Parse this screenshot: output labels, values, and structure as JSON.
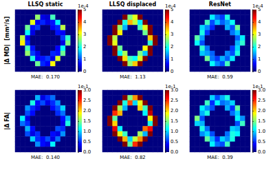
{
  "chart_data": [
    {
      "type": "heatmap",
      "title": "LLSQ static",
      "ylabel": "|Δ MD|  [mm²/s]",
      "annotation": "MAE:  0.170",
      "tick_labels": false,
      "colorbar": {
        "range": [
          0,
          5
        ],
        "ticks": [
          0,
          1,
          2,
          3,
          4,
          5
        ],
        "label": "1e-4"
      },
      "cells": [
        [
          0,
          0,
          0,
          0,
          0,
          0,
          0,
          0,
          0,
          0,
          0,
          0
        ],
        [
          0,
          0,
          0,
          0,
          2.6,
          0.5,
          0.4,
          2.2,
          0,
          0,
          0,
          0
        ],
        [
          0,
          0,
          0,
          3.0,
          0.6,
          0.8,
          0.5,
          0.7,
          1.8,
          0,
          0,
          0
        ],
        [
          0,
          0,
          2.4,
          0.7,
          0.9,
          0,
          0,
          0.6,
          0.8,
          2.8,
          0,
          0
        ],
        [
          0,
          0,
          1.9,
          0.5,
          0,
          0,
          0,
          0,
          0.7,
          0.6,
          0,
          0
        ],
        [
          0,
          2.8,
          0.6,
          0,
          0,
          0,
          0,
          0,
          0,
          0.9,
          2.1,
          0
        ],
        [
          0,
          3.2,
          0.8,
          0,
          0,
          0,
          0,
          0,
          0,
          0.5,
          2.5,
          0
        ],
        [
          0,
          0,
          2.2,
          0.7,
          0,
          0,
          0,
          0,
          0.6,
          1.9,
          0,
          0
        ],
        [
          0,
          0,
          2.6,
          0.9,
          0.5,
          0,
          0,
          0.8,
          0.7,
          2.4,
          0,
          0
        ],
        [
          0,
          0,
          0,
          2.0,
          0.6,
          0.7,
          0.9,
          0.5,
          2.9,
          0,
          0,
          0
        ],
        [
          0,
          0,
          0,
          0,
          2.4,
          0.8,
          0.6,
          3.1,
          0,
          0,
          0,
          0
        ],
        [
          0,
          0,
          0,
          0,
          0,
          0,
          0,
          0,
          0,
          0,
          0,
          0
        ]
      ]
    },
    {
      "type": "heatmap",
      "title": "LLSQ displaced",
      "annotation": "MAE:  1.13",
      "tick_labels": false,
      "colorbar": {
        "range": [
          0,
          5
        ],
        "ticks": [
          0,
          1,
          2,
          3,
          4,
          5
        ],
        "label": "1e-4"
      },
      "cells": [
        [
          0,
          0,
          0,
          0,
          0,
          0,
          0,
          0,
          0,
          0,
          0,
          0
        ],
        [
          0,
          0,
          0,
          0,
          5,
          2.5,
          3.0,
          5,
          0,
          0,
          0,
          0
        ],
        [
          0,
          0,
          0,
          5,
          2.0,
          3.5,
          2.8,
          1.8,
          5,
          0,
          0,
          0
        ],
        [
          0,
          0,
          5,
          2.6,
          1.5,
          0,
          0,
          2.2,
          3.0,
          5,
          0,
          0
        ],
        [
          0,
          0,
          5,
          3.2,
          0,
          0,
          0,
          0,
          2.4,
          5,
          0,
          0
        ],
        [
          0,
          5,
          2.8,
          0,
          0,
          0,
          0,
          0,
          0,
          3.4,
          5,
          0
        ],
        [
          0,
          5,
          3.0,
          0,
          0,
          0,
          0,
          0,
          0,
          2.1,
          5,
          0
        ],
        [
          0,
          0,
          5,
          2.4,
          0,
          0,
          0,
          0,
          3.1,
          5,
          0,
          0
        ],
        [
          0,
          0,
          5,
          1.9,
          2.7,
          0,
          0,
          2.5,
          1.6,
          5,
          0,
          0
        ],
        [
          0,
          0,
          0,
          5,
          3.3,
          2.2,
          1.9,
          2.9,
          5,
          0,
          0,
          0
        ],
        [
          0,
          0,
          0,
          0,
          5,
          2.6,
          3.4,
          5,
          0,
          0,
          0,
          0
        ],
        [
          0,
          0,
          0,
          0,
          0,
          0,
          0,
          0,
          0,
          0,
          0,
          0
        ]
      ]
    },
    {
      "type": "heatmap",
      "title": "ResNet",
      "annotation": "MAE:  0.59",
      "tick_labels": false,
      "colorbar": {
        "range": [
          0,
          5
        ],
        "ticks": [
          0,
          1,
          2,
          3,
          4,
          5
        ],
        "label": "1e-4"
      },
      "cells": [
        [
          0,
          0,
          0,
          0,
          0,
          0,
          0,
          0,
          0,
          0,
          0,
          0
        ],
        [
          0,
          0,
          0,
          0,
          1.8,
          1.2,
          0.9,
          2.0,
          0,
          0,
          0,
          0
        ],
        [
          0,
          0,
          0,
          2.2,
          1.0,
          1.6,
          1.1,
          1.4,
          1.9,
          0,
          0,
          0
        ],
        [
          0,
          0,
          1.7,
          1.3,
          0.8,
          0,
          0,
          1.5,
          1.0,
          2.4,
          0,
          0
        ],
        [
          0,
          0,
          2.0,
          0.9,
          0,
          0,
          0,
          0,
          1.2,
          1.6,
          0,
          0
        ],
        [
          0,
          2.3,
          1.4,
          0,
          0,
          0,
          0,
          0,
          0,
          1.1,
          1.8,
          0
        ],
        [
          0,
          1.9,
          1.0,
          0,
          0,
          0,
          0,
          0,
          0,
          1.5,
          2.1,
          0
        ],
        [
          0,
          0,
          2.1,
          1.2,
          0,
          0,
          0,
          0,
          0.9,
          1.7,
          0,
          0
        ],
        [
          0,
          0,
          1.6,
          1.4,
          1.1,
          0,
          0,
          1.3,
          1.0,
          2.0,
          0,
          0
        ],
        [
          0,
          0,
          0,
          2.4,
          1.2,
          0.9,
          1.5,
          1.1,
          1.8,
          0,
          0,
          0
        ],
        [
          0,
          0,
          0,
          0,
          1.9,
          1.3,
          1.0,
          2.2,
          0,
          0,
          0,
          0
        ],
        [
          0,
          0,
          0,
          0,
          0,
          0,
          0,
          0,
          0,
          0,
          0,
          0
        ]
      ]
    },
    {
      "type": "heatmap",
      "ylabel": "|Δ FA|",
      "annotation": "MAE:  0.140",
      "tick_labels": false,
      "colorbar": {
        "range": [
          0,
          3
        ],
        "ticks": [
          {
            "value": 0,
            "label": "0.0"
          },
          {
            "value": 0.5,
            "label": "0.5"
          },
          {
            "value": 1,
            "label": "1.0"
          },
          {
            "value": 1.5,
            "label": "1.5"
          },
          {
            "value": 2,
            "label": "2.0"
          },
          {
            "value": 2.5,
            "label": "2.5"
          },
          {
            "value": 3,
            "label": "3.0"
          }
        ],
        "label": "1e-1"
      },
      "cells": [
        [
          0,
          0,
          0,
          0,
          0,
          0,
          0,
          0,
          0,
          0,
          0,
          0
        ],
        [
          0,
          0,
          0,
          0,
          0.9,
          0.3,
          0.5,
          0.7,
          0,
          0,
          0,
          0
        ],
        [
          0,
          0,
          0,
          1.2,
          0.4,
          0.6,
          0.3,
          0.5,
          0.8,
          0,
          0,
          0
        ],
        [
          0,
          0,
          0.8,
          0.5,
          0.3,
          0,
          0,
          0.4,
          0.6,
          1.0,
          0,
          0
        ],
        [
          0,
          0,
          0.6,
          0.4,
          0,
          0,
          0,
          0,
          0.5,
          0.7,
          0,
          0
        ],
        [
          0,
          1.1,
          0.3,
          0,
          0,
          0,
          0,
          0,
          0,
          0.4,
          0.9,
          0
        ],
        [
          0,
          0.7,
          0.5,
          0,
          0,
          0,
          0,
          0,
          0,
          0.3,
          1.2,
          0
        ],
        [
          0,
          0,
          0.9,
          0.4,
          0,
          0,
          0,
          0,
          0.6,
          0.5,
          0,
          0
        ],
        [
          0,
          0,
          0.6,
          0.3,
          0.5,
          0,
          0,
          0.4,
          0.3,
          0.8,
          0,
          0
        ],
        [
          0,
          0,
          0,
          1.0,
          0.5,
          0.4,
          0.6,
          0.3,
          0.7,
          0,
          0,
          0
        ],
        [
          0,
          0,
          0,
          0,
          0.8,
          0.4,
          0.3,
          1.1,
          0,
          0,
          0,
          0
        ],
        [
          0,
          0,
          0,
          0,
          0,
          0,
          0,
          0,
          0,
          0,
          0,
          0
        ]
      ]
    },
    {
      "type": "heatmap",
      "annotation": "MAE:  0.82",
      "tick_labels": false,
      "colorbar": {
        "range": [
          0,
          3
        ],
        "ticks": [
          {
            "value": 0,
            "label": "0.0"
          },
          {
            "value": 0.5,
            "label": "0.5"
          },
          {
            "value": 1,
            "label": "1.0"
          },
          {
            "value": 1.5,
            "label": "1.5"
          },
          {
            "value": 2,
            "label": "2.0"
          },
          {
            "value": 2.5,
            "label": "2.5"
          },
          {
            "value": 3,
            "label": "3.0"
          }
        ],
        "label": "1e-1"
      },
      "cells": [
        [
          0,
          0,
          0,
          0,
          0,
          0,
          0,
          0,
          0,
          0,
          0,
          0
        ],
        [
          0,
          0,
          0,
          0,
          3,
          1.5,
          2.2,
          3,
          0,
          0,
          0,
          0
        ],
        [
          0,
          0,
          0,
          3,
          1.2,
          2.4,
          1.0,
          1.8,
          3,
          0,
          0,
          0
        ],
        [
          0,
          0,
          3,
          1.6,
          0.9,
          0,
          0,
          2.0,
          1.3,
          3,
          0,
          0
        ],
        [
          0,
          0,
          2.5,
          2.1,
          0,
          0,
          0,
          0,
          1.1,
          2.8,
          0,
          0
        ],
        [
          0,
          3,
          1.4,
          0,
          0,
          0,
          0,
          0,
          0,
          1.9,
          3,
          0
        ],
        [
          0,
          3,
          2.0,
          0,
          0,
          0,
          0,
          0,
          0,
          1.2,
          3,
          0
        ],
        [
          0,
          0,
          2.7,
          1.1,
          0,
          0,
          0,
          0,
          2.3,
          2.6,
          0,
          0
        ],
        [
          0,
          0,
          3,
          1.8,
          1.3,
          0,
          0,
          1.6,
          0.9,
          3,
          0,
          0
        ],
        [
          0,
          0,
          0,
          3,
          2.1,
          1.0,
          1.7,
          2.2,
          3,
          0,
          0,
          0
        ],
        [
          0,
          0,
          0,
          0,
          3,
          1.4,
          2.5,
          3,
          0,
          0,
          0,
          0
        ],
        [
          0,
          0,
          0,
          0,
          0,
          0,
          0,
          0,
          0,
          0,
          0,
          0
        ]
      ]
    },
    {
      "type": "heatmap",
      "annotation": "MAE:  0.39",
      "tick_labels": false,
      "colorbar": {
        "range": [
          0,
          3
        ],
        "ticks": [
          {
            "value": 0,
            "label": "0.0"
          },
          {
            "value": 0.5,
            "label": "0.5"
          },
          {
            "value": 1,
            "label": "1.0"
          },
          {
            "value": 1.5,
            "label": "1.5"
          },
          {
            "value": 2,
            "label": "2.0"
          },
          {
            "value": 2.5,
            "label": "2.5"
          },
          {
            "value": 3,
            "label": "3.0"
          }
        ],
        "label": "1e-1"
      },
      "cells": [
        [
          0,
          0,
          0,
          0,
          0,
          0,
          0,
          0,
          0,
          0,
          0,
          0
        ],
        [
          0,
          0,
          0,
          0,
          1.0,
          0.6,
          0.9,
          1.2,
          0,
          0,
          0,
          0
        ],
        [
          0,
          0,
          0,
          1.3,
          0.5,
          1.1,
          0.7,
          0.8,
          1.0,
          0,
          0,
          0
        ],
        [
          0,
          0,
          1.1,
          0.8,
          0.6,
          0,
          0,
          0.9,
          0.5,
          1.4,
          0,
          0
        ],
        [
          0,
          0,
          0.9,
          1.2,
          0,
          0,
          0,
          0,
          0.7,
          1.0,
          0,
          0
        ],
        [
          0,
          1.5,
          0.6,
          0,
          0,
          0,
          0,
          0,
          0,
          1.1,
          0.8,
          0
        ],
        [
          0,
          1.0,
          0.9,
          0,
          0,
          0,
          0,
          0,
          0,
          0.6,
          1.3,
          0
        ],
        [
          0,
          0,
          1.2,
          0.7,
          0,
          0,
          0,
          0,
          1.0,
          0.9,
          0,
          0
        ],
        [
          0,
          0,
          0.8,
          1.0,
          0.6,
          0,
          0,
          0.7,
          1.2,
          1.1,
          0,
          0
        ],
        [
          0,
          0,
          0,
          1.4,
          0.9,
          0.5,
          1.0,
          0.8,
          1.2,
          0,
          0,
          0
        ],
        [
          0,
          0,
          0,
          0,
          1.1,
          0.7,
          0.6,
          1.3,
          0,
          0,
          0,
          0
        ],
        [
          0,
          0,
          0,
          0,
          0,
          0,
          0,
          0,
          0,
          0,
          0,
          0
        ]
      ]
    }
  ]
}
